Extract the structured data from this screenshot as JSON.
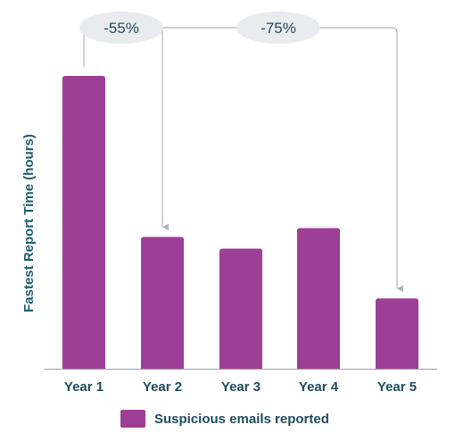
{
  "chart_data": {
    "type": "bar",
    "categories": [
      "Year 1",
      "Year 2",
      "Year 3",
      "Year 4",
      "Year 5"
    ],
    "series": [
      {
        "name": "Suspicious emails reported",
        "values": [
          100,
          45,
          41,
          48,
          24
        ]
      }
    ],
    "title": "",
    "xlabel": "",
    "ylabel": "Fastest Report Time (hours)",
    "ylim": [
      0,
      100
    ],
    "grid": false,
    "legend": "bottom",
    "annotations": [
      {
        "text": "-55%",
        "from": "Year 1",
        "to": "Year 2"
      },
      {
        "text": "-75%",
        "from": "Year 1",
        "to": "Year 5"
      }
    ],
    "colors": {
      "bar": "#9e3f96",
      "text": "#1f4b5c",
      "axis_title": "#1a5b72",
      "annotation_bubble": "#e9ebef",
      "connector": "#b0b4ba",
      "axis": "#9aa0a6"
    }
  }
}
